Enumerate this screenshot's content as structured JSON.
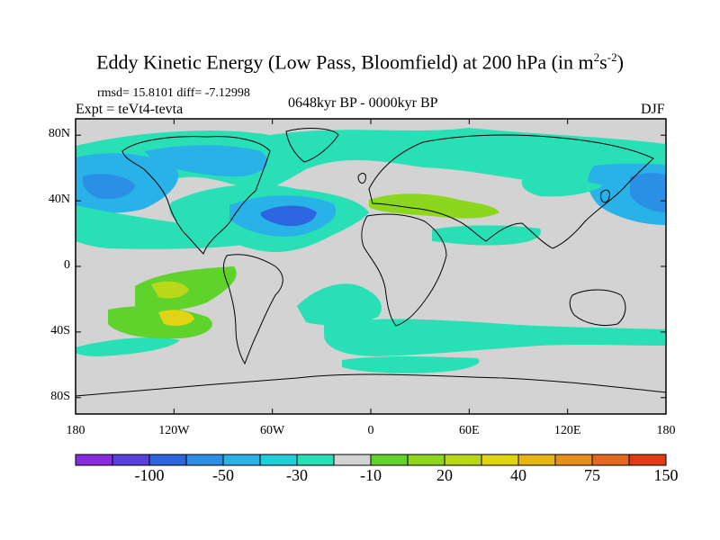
{
  "title": {
    "main": "Eddy Kinetic Energy (Low Pass, Bloomfield) at 200 hPa (in m",
    "sup1": "2",
    "mid": "s",
    "sup2": "-2",
    "end": ")"
  },
  "stats": "rmsd= 15.8101 diff= -7.12998",
  "experiment": "Expt = teVt4-tevta",
  "period": "0648kyr BP - 0000kyr BP",
  "season": "DJF",
  "map": {
    "x_ticks": [
      "180",
      "120W",
      "60W",
      "0",
      "60E",
      "120E",
      "180"
    ],
    "y_ticks": [
      "80N",
      "40N",
      "0",
      "40S",
      "80S"
    ],
    "background_color": "#d3d3d3"
  },
  "colorbar": {
    "labels": [
      "-100",
      "-50",
      "-30",
      "-10",
      "20",
      "40",
      "75",
      "150"
    ],
    "colors": [
      "#8a2be2",
      "#5a3fe0",
      "#2b66e0",
      "#2b8fe6",
      "#29b2e8",
      "#21cdd8",
      "#29e0b6",
      "#d3d3d3",
      "#5fd22c",
      "#8cd61e",
      "#b9d81a",
      "#e0d414",
      "#e6b414",
      "#e6901a",
      "#e6681e",
      "#e03c16"
    ]
  }
}
